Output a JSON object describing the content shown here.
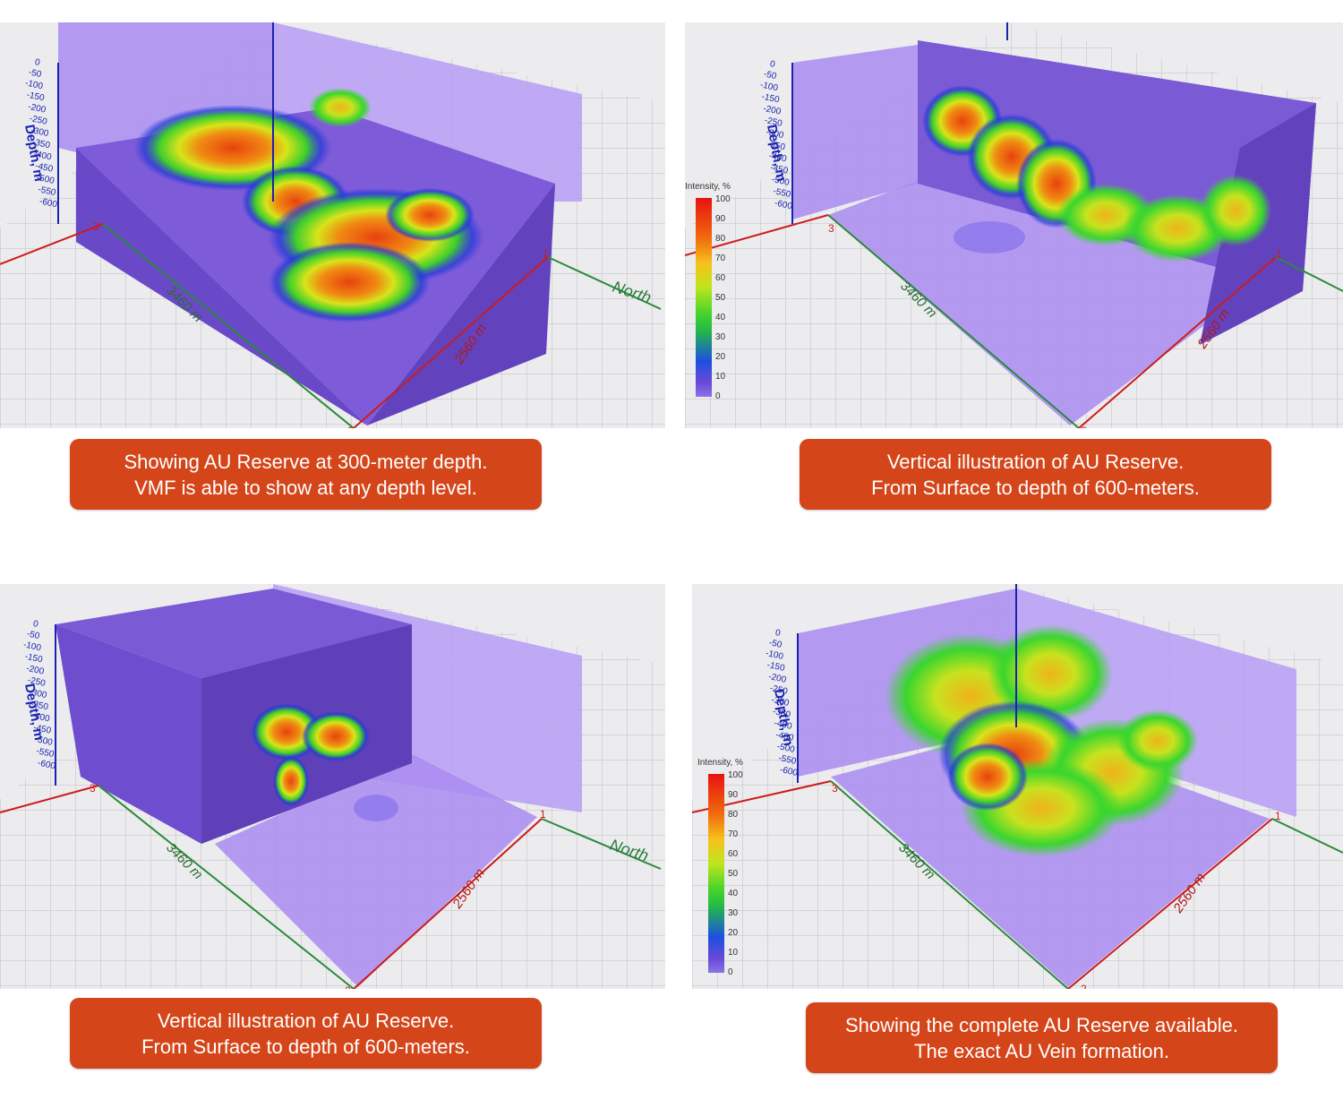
{
  "panels": [
    {
      "depth_axis_label": "Depth, m",
      "depth_ticks": [
        "0",
        "-50",
        "-100",
        "-150",
        "-200",
        "-250",
        "-300",
        "-350",
        "-400",
        "-450",
        "-500",
        "-550",
        "-600"
      ],
      "length_label": "3460 m",
      "width_label": "2560 m",
      "north_label": "North",
      "corner_labels": [
        "3",
        "1",
        "2"
      ],
      "caption_lines": [
        "Showing AU Reserve at 300-meter depth.",
        "VMF is able to show at any depth level."
      ]
    },
    {
      "depth_axis_label": "Depth, m",
      "depth_ticks": [
        "0",
        "-50",
        "-100",
        "-150",
        "-200",
        "-250",
        "-300",
        "-350",
        "-400",
        "-450",
        "-500",
        "-550",
        "-600"
      ],
      "length_label": "3460 m",
      "width_label": "2560 m",
      "corner_labels": [
        "3",
        "1",
        "2"
      ],
      "colorbar": {
        "title": "Intensity, %",
        "ticks": [
          "100",
          "90",
          "80",
          "70",
          "60",
          "50",
          "40",
          "30",
          "20",
          "10",
          "0"
        ]
      },
      "caption_lines": [
        "Vertical illustration of AU Reserve.",
        "From Surface to depth of 600-meters."
      ]
    },
    {
      "depth_axis_label": "Depth, m",
      "depth_ticks": [
        "0",
        "-50",
        "-100",
        "-150",
        "-200",
        "-250",
        "-300",
        "-350",
        "-400",
        "-450",
        "-500",
        "-550",
        "-600"
      ],
      "length_label": "3460 m",
      "width_label": "2560 m",
      "north_label": "North",
      "corner_labels": [
        "3",
        "1",
        "2"
      ],
      "caption_lines": [
        "Vertical illustration of AU Reserve.",
        "From Surface to depth of 600-meters."
      ]
    },
    {
      "depth_axis_label": "Depth, m",
      "depth_ticks": [
        "0",
        "-50",
        "-100",
        "-150",
        "-200",
        "-250",
        "-300",
        "-350",
        "-400",
        "-450",
        "-500",
        "-550",
        "-600"
      ],
      "length_label": "3460 m",
      "width_label": "2560 m",
      "corner_labels": [
        "3",
        "1",
        "2"
      ],
      "colorbar": {
        "title": "Intensity, %",
        "ticks": [
          "100",
          "90",
          "80",
          "70",
          "60",
          "50",
          "40",
          "30",
          "20",
          "10",
          "0"
        ]
      },
      "caption_lines": [
        "Showing the complete AU Reserve available.",
        "The exact AU Vein formation."
      ]
    }
  ],
  "colors": {
    "caption_bg": "#d4461a",
    "volume": "#7b5ad6",
    "axis_red": "#cc1b1b",
    "axis_green": "#2a8a3a",
    "axis_blue": "#1a22b0"
  }
}
